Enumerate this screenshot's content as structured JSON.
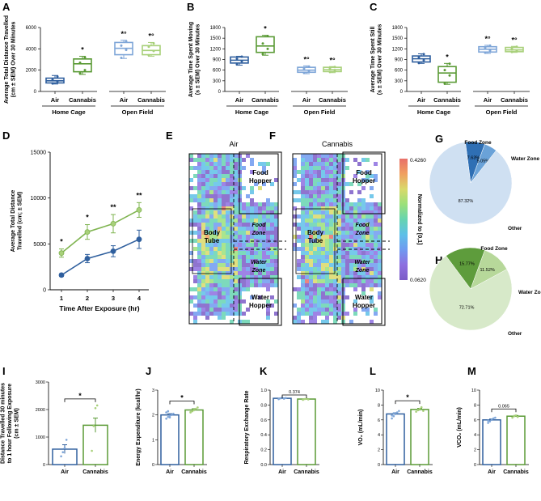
{
  "colors": {
    "air": "#2f5f9e",
    "air_light": "#7fa6d8",
    "cannabis": "#5a9a35",
    "cannabis_light": "#a8d07a",
    "pie_g_main": "#cfe0f2",
    "pie_g_food": "#2f6fb4",
    "pie_g_water": "#6aa2d8",
    "pie_h_main": "#d7e9c9",
    "pie_h_food": "#5e9c3c",
    "pie_h_water": "#b7d89a"
  },
  "chart_data": [
    {
      "panel": "A",
      "type": "box",
      "ylabel": [
        "Average Total Distance Travelled",
        "(cm ± SEM) Over 30 Minutes"
      ],
      "ylim": [
        0,
        6000
      ],
      "yticks": [
        "0",
        "2000",
        "4000",
        "6000"
      ],
      "groups": [
        {
          "label": "Home Cage",
          "x": [
            "Air",
            "Cannabis"
          ]
        },
        {
          "label": "Open Field",
          "x": [
            "Air",
            "Cannabis"
          ]
        }
      ],
      "boxes": [
        {
          "g": "home",
          "s": "air",
          "min": 700,
          "q1": 800,
          "med": 1000,
          "q3": 1250,
          "max": 1500,
          "pts": [
            750,
            950,
            1100,
            1400
          ],
          "sig": ""
        },
        {
          "g": "home",
          "s": "cannabis",
          "min": 1600,
          "q1": 1850,
          "med": 2600,
          "q3": 3050,
          "max": 3300,
          "pts": [
            1700,
            2000,
            2700,
            3200
          ],
          "sig": "*"
        },
        {
          "g": "open",
          "s": "air",
          "min": 3100,
          "q1": 3450,
          "med": 4050,
          "q3": 4600,
          "max": 4800,
          "pts": [
            3150,
            3900,
            4300,
            4700
          ],
          "sig": "*°"
        },
        {
          "g": "open",
          "s": "cannabis",
          "min": 3300,
          "q1": 3450,
          "med": 3850,
          "q3": 4300,
          "max": 4600,
          "pts": [
            3400,
            3800,
            4200,
            4500
          ],
          "sig": "*°"
        }
      ]
    },
    {
      "panel": "B",
      "type": "box",
      "ylabel": [
        "Average Time Spent Moving",
        "(s ± SEM) Over 30 Minutes"
      ],
      "ylim": [
        0,
        1800
      ],
      "yticks": [
        "0",
        "300",
        "600",
        "900",
        "1200",
        "1500",
        "1800"
      ],
      "groups": [
        {
          "label": "Home Cage",
          "x": [
            "Air",
            "Cannabis"
          ]
        },
        {
          "label": "Open Field",
          "x": [
            "Air",
            "Cannabis"
          ]
        }
      ],
      "boxes": [
        {
          "g": "home",
          "s": "air",
          "min": 740,
          "q1": 800,
          "med": 880,
          "q3": 970,
          "max": 990,
          "pts": [
            760,
            850,
            920,
            980
          ],
          "sig": ""
        },
        {
          "g": "home",
          "s": "cannabis",
          "min": 1020,
          "q1": 1100,
          "med": 1280,
          "q3": 1540,
          "max": 1580,
          "pts": [
            1050,
            1200,
            1350,
            1560
          ],
          "sig": "*"
        },
        {
          "g": "open",
          "s": "air",
          "min": 500,
          "q1": 540,
          "med": 600,
          "q3": 680,
          "max": 720,
          "pts": [
            520,
            580,
            640,
            700
          ],
          "sig": "*°"
        },
        {
          "g": "open",
          "s": "cannabis",
          "min": 530,
          "q1": 560,
          "med": 610,
          "q3": 680,
          "max": 700,
          "pts": [
            550,
            600,
            650,
            690
          ],
          "sig": "*°"
        }
      ]
    },
    {
      "panel": "C",
      "type": "box",
      "ylabel": [
        "Average Time Spent Still",
        "(s ± SEM) Over 30 Minutes"
      ],
      "ylim": [
        0,
        1800
      ],
      "yticks": [
        "0",
        "300",
        "600",
        "900",
        "1200",
        "1500",
        "1800"
      ],
      "groups": [
        {
          "label": "Home Cage",
          "x": [
            "Air",
            "Cannabis"
          ]
        },
        {
          "label": "Open Field",
          "x": [
            "Air",
            "Cannabis"
          ]
        }
      ],
      "boxes": [
        {
          "g": "home",
          "s": "air",
          "min": 790,
          "q1": 830,
          "med": 920,
          "q3": 1000,
          "max": 1060,
          "pts": [
            800,
            880,
            960,
            1050
          ],
          "sig": ""
        },
        {
          "g": "home",
          "s": "cannabis",
          "min": 200,
          "q1": 260,
          "med": 520,
          "q3": 700,
          "max": 790,
          "pts": [
            220,
            450,
            600,
            780
          ],
          "sig": "*"
        },
        {
          "g": "open",
          "s": "air",
          "min": 1070,
          "q1": 1110,
          "med": 1190,
          "q3": 1260,
          "max": 1300,
          "pts": [
            1090,
            1150,
            1230,
            1290
          ],
          "sig": "*°"
        },
        {
          "g": "open",
          "s": "cannabis",
          "min": 1100,
          "q1": 1120,
          "med": 1170,
          "q3": 1240,
          "max": 1270,
          "pts": [
            1110,
            1150,
            1200,
            1260
          ],
          "sig": "*°"
        }
      ]
    },
    {
      "panel": "D",
      "type": "line",
      "ylabel": [
        "Average Total Distance",
        "Travelled (cm; ± SEM)"
      ],
      "xlabel": "Time After Exposure (hr)",
      "xticks": [
        "1",
        "2",
        "3",
        "4"
      ],
      "ylim": [
        0,
        15000
      ],
      "yticks": [
        "0",
        "5000",
        "10000",
        "15000"
      ],
      "series": [
        {
          "s": "air",
          "values": [
            1600,
            3400,
            4200,
            5500
          ],
          "sem": [
            150,
            450,
            600,
            1000
          ]
        },
        {
          "s": "cannabis",
          "values": [
            4000,
            6300,
            7200,
            8700
          ],
          "sem": [
            450,
            800,
            1000,
            800
          ]
        }
      ],
      "sig": [
        "*",
        "*",
        "**",
        "**"
      ]
    },
    {
      "panel": "E",
      "type": "heatmap",
      "title": "Air",
      "zones": [
        "Food\nHopper",
        "Body\nTube",
        "Food\nZone",
        "Water\nZone",
        "Water\nHopper"
      ]
    },
    {
      "panel": "F",
      "type": "heatmap",
      "title": "Cannabis",
      "zones": [
        "Food\nHopper",
        "Body\nTube",
        "Food\nZone",
        "Water\nZone",
        "Water\nHopper"
      ],
      "colorbar": {
        "label": "Normalized to [0,1]",
        "max": "0.4260",
        "min": "0.0620"
      }
    },
    {
      "panel": "G",
      "type": "pie",
      "slices": [
        {
          "label": "Other",
          "pct": "87.32%",
          "value": 87.32
        },
        {
          "label": "Food Zone",
          "pct": "7.63%",
          "value": 7.63
        },
        {
          "label": "Water Zone",
          "pct": "5.05%",
          "value": 5.05
        }
      ]
    },
    {
      "panel": "H",
      "type": "pie",
      "slices": [
        {
          "label": "Other",
          "pct": "72.71%",
          "value": 72.71
        },
        {
          "label": "Food Zone",
          "pct": "15.77%",
          "value": 15.77
        },
        {
          "label": "Water Zone",
          "pct": "11.52%",
          "value": 11.52
        }
      ]
    },
    {
      "panel": "I",
      "type": "bar",
      "ylabel": [
        "Distance Travelled 30 minutes",
        "to 1 hour Following Exposure",
        "(cm ± SEM)"
      ],
      "categories": [
        "Air",
        "Cannabis"
      ],
      "values": [
        560,
        1430
      ],
      "sem": [
        160,
        260
      ],
      "ylim": [
        0,
        3000
      ],
      "yticks": [
        "0",
        "1000",
        "2000",
        "3000"
      ],
      "sig": "*",
      "pts": [
        [
          300,
          450,
          600,
          900
        ],
        [
          500,
          1400,
          2050,
          2150
        ]
      ]
    },
    {
      "panel": "J",
      "type": "bar",
      "ylabel": [
        "Energy Expenditure (kcal/hr)"
      ],
      "categories": [
        "Air",
        "Cannabis"
      ],
      "values": [
        2.0,
        2.2
      ],
      "sem": [
        0.05,
        0.05
      ],
      "ylim": [
        0,
        3
      ],
      "yticks": [
        "0",
        "1",
        "2",
        "3"
      ],
      "sig": "*",
      "pts": [
        [
          1.85,
          1.92,
          1.97,
          2.0,
          2.05,
          2.1,
          2.15,
          1.9
        ],
        [
          2.1,
          2.15,
          2.2,
          2.25,
          2.3,
          2.12
        ]
      ]
    },
    {
      "panel": "K",
      "type": "bar",
      "ylabel": [
        "Respiratory Exchange Rate"
      ],
      "categories": [
        "Air",
        "Cannabis"
      ],
      "values": [
        0.89,
        0.88
      ],
      "sem": [
        0.005,
        0.005
      ],
      "ylim": [
        0,
        1.0
      ],
      "yticks": [
        "0.0",
        "0.2",
        "0.4",
        "0.6",
        "0.8",
        "1.0"
      ],
      "sig": "0.374",
      "pts": [
        [
          0.88,
          0.89,
          0.9,
          0.885,
          0.895,
          0.88
        ],
        [
          0.87,
          0.88,
          0.885,
          0.875
        ]
      ]
    },
    {
      "panel": "L",
      "type": "bar",
      "ylabel": [
        "VO₂ (mL/min)"
      ],
      "categories": [
        "Air",
        "Cannabis"
      ],
      "values": [
        6.8,
        7.4
      ],
      "sem": [
        0.15,
        0.15
      ],
      "ylim": [
        0,
        10
      ],
      "yticks": [
        "0",
        "2",
        "4",
        "6",
        "8",
        "10"
      ],
      "sig": "*",
      "pts": [
        [
          6.2,
          6.5,
          6.8,
          7.0,
          7.2,
          6.6,
          6.9
        ],
        [
          7.1,
          7.3,
          7.5,
          7.7,
          7.2
        ]
      ]
    },
    {
      "panel": "M",
      "type": "bar",
      "ylabel": [
        "VCO₂ (mL/min)"
      ],
      "categories": [
        "Air",
        "Cannabis"
      ],
      "values": [
        6.0,
        6.5
      ],
      "sem": [
        0.12,
        0.1
      ],
      "ylim": [
        0,
        10
      ],
      "yticks": [
        "0",
        "2",
        "4",
        "6",
        "8",
        "10"
      ],
      "sig": "0.065",
      "pts": [
        [
          5.6,
          5.8,
          6.0,
          6.2,
          6.3,
          5.9
        ],
        [
          6.3,
          6.5,
          6.6,
          6.4
        ]
      ]
    }
  ]
}
